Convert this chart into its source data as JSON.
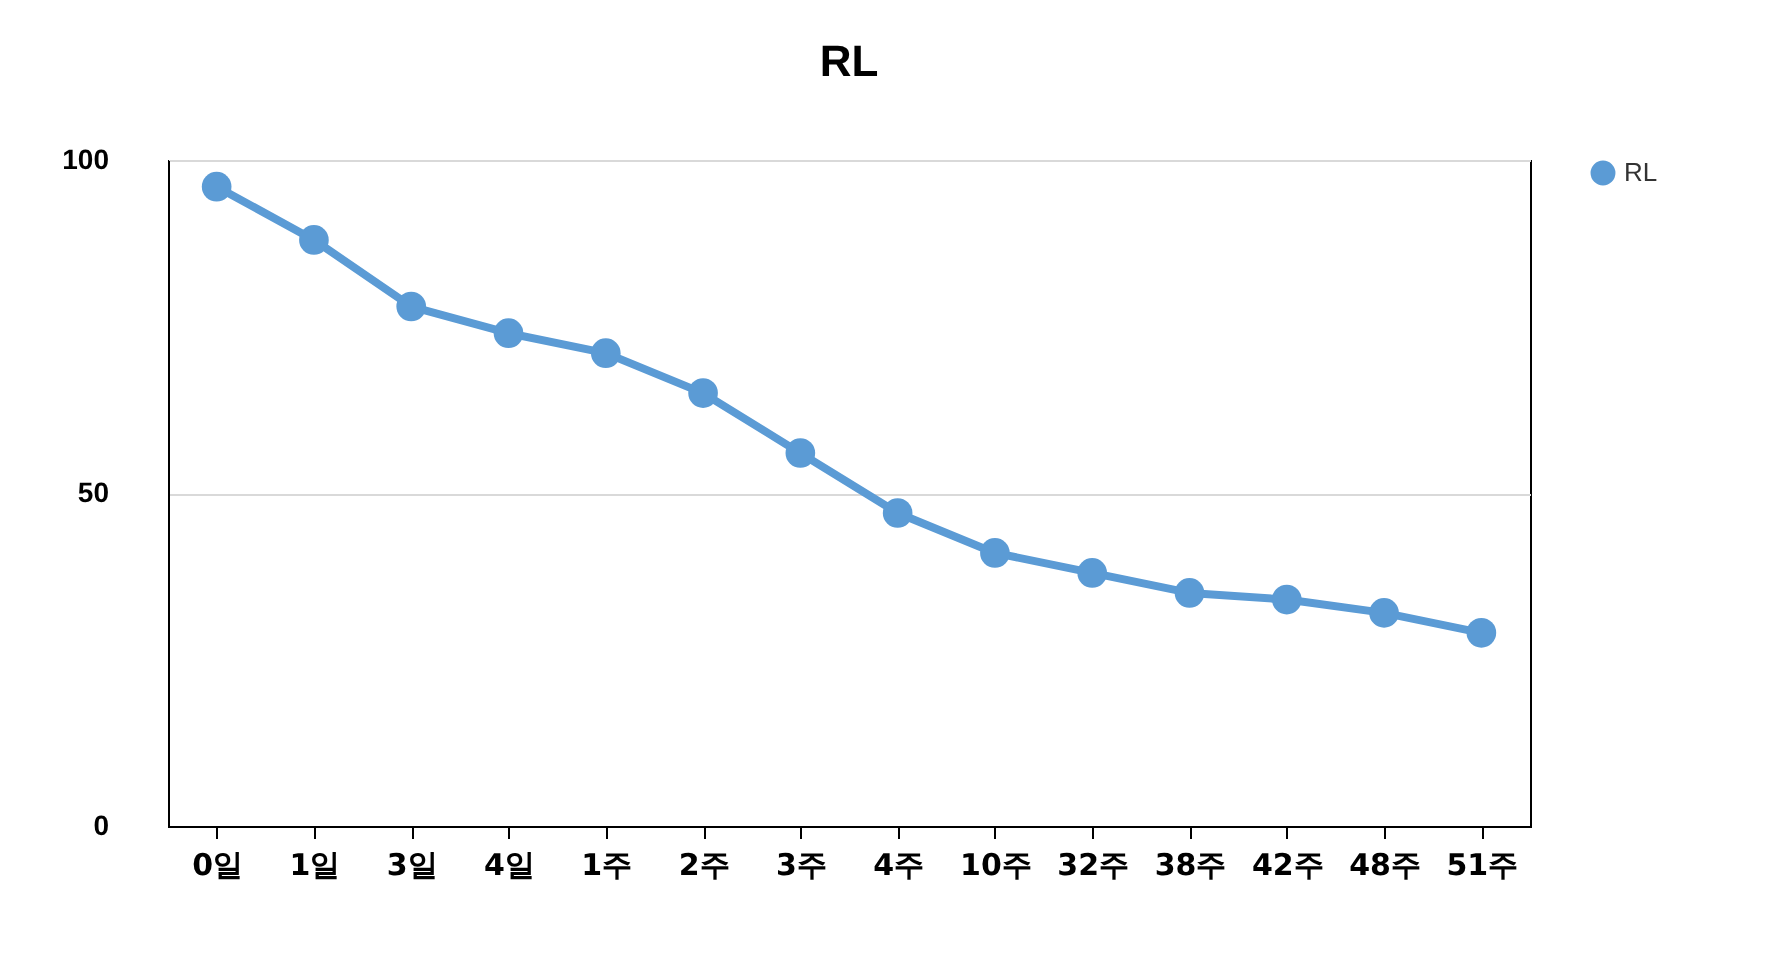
{
  "chart_data": {
    "type": "line",
    "title": "RL",
    "categories": [
      "0일",
      "1일",
      "3일",
      "4일",
      "1주",
      "2주",
      "3주",
      "4주",
      "10주",
      "32주",
      "38주",
      "42주",
      "48주",
      "51주"
    ],
    "series": [
      {
        "name": "RL",
        "color": "#5b9bd5",
        "values": [
          96,
          88,
          78,
          74,
          71,
          65,
          56,
          47,
          41,
          38,
          35,
          34,
          32,
          29
        ]
      }
    ],
    "ylim": [
      0,
      100
    ],
    "yticks": [
      0,
      50,
      100
    ],
    "grid": "y",
    "legend": "right",
    "marker": "circle",
    "line_style": "solid"
  }
}
